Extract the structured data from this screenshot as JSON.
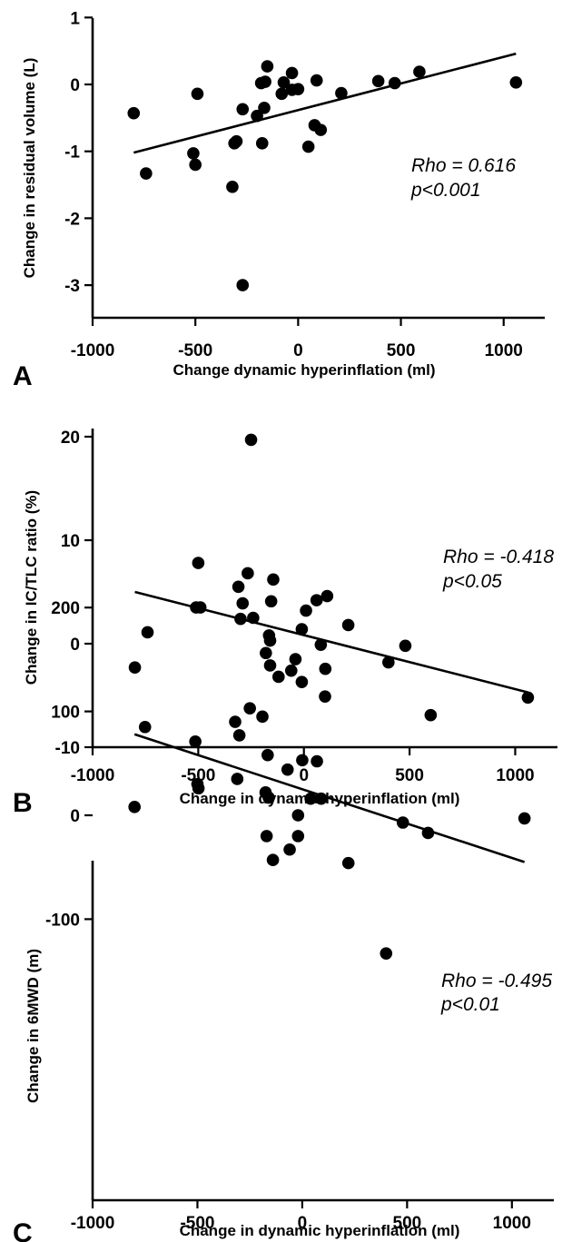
{
  "chart_data": [
    {
      "type": "scatter",
      "panel_label": "A",
      "xlabel": "Change dynamic hyperinflation (ml)",
      "ylabel": "Change in residual volume (L)",
      "xlim": [
        -1000,
        1200
      ],
      "ylim": [
        -3.5,
        1
      ],
      "xticks": [
        "-1000",
        "-500",
        "0",
        "500",
        "1000"
      ],
      "yticks": [
        "1",
        "0",
        "-1",
        "-2",
        "-3"
      ],
      "annotation": {
        "rho": "Rho = 0.616",
        "p": "p<0.001"
      },
      "fit": {
        "x": [
          -800,
          1060
        ],
        "y": [
          -1.02,
          0.46
        ]
      },
      "points": [
        {
          "x": -800,
          "y": -0.43
        },
        {
          "x": -740,
          "y": -1.33
        },
        {
          "x": -510,
          "y": -1.03
        },
        {
          "x": -500,
          "y": -1.2
        },
        {
          "x": -490,
          "y": -0.14
        },
        {
          "x": -320,
          "y": -1.53
        },
        {
          "x": -310,
          "y": -0.88
        },
        {
          "x": -300,
          "y": -0.85
        },
        {
          "x": -270,
          "y": -0.37
        },
        {
          "x": -270,
          "y": -3.0
        },
        {
          "x": -200,
          "y": -0.47
        },
        {
          "x": -180,
          "y": 0.02
        },
        {
          "x": -175,
          "y": -0.88
        },
        {
          "x": -165,
          "y": -0.35
        },
        {
          "x": -160,
          "y": 0.04
        },
        {
          "x": -150,
          "y": 0.27
        },
        {
          "x": -80,
          "y": -0.14
        },
        {
          "x": -70,
          "y": 0.03
        },
        {
          "x": -30,
          "y": -0.08
        },
        {
          "x": -30,
          "y": 0.17
        },
        {
          "x": 0,
          "y": -0.07
        },
        {
          "x": 50,
          "y": -0.93
        },
        {
          "x": 80,
          "y": -0.61
        },
        {
          "x": 90,
          "y": 0.06
        },
        {
          "x": 110,
          "y": -0.68
        },
        {
          "x": 210,
          "y": -0.13
        },
        {
          "x": 390,
          "y": 0.05
        },
        {
          "x": 470,
          "y": 0.02
        },
        {
          "x": 590,
          "y": 0.19
        },
        {
          "x": 1060,
          "y": 0.03
        }
      ]
    },
    {
      "type": "scatter",
      "panel_label": "B",
      "xlabel": "Change in dynamic hyperinflation (ml)",
      "ylabel": "Change in IC/TLC ratio (%)",
      "xlim": [
        -1000,
        1200
      ],
      "ylim": [
        -10,
        21
      ],
      "xticks": [
        "-1000",
        "-500",
        "0",
        "500",
        "1000"
      ],
      "yticks": [
        "20",
        "10",
        "0",
        "-10"
      ],
      "annotation": {
        "rho": "Rho = -0.418",
        "p": "p<0.05"
      },
      "fit": {
        "x": [
          -800,
          1060
        ],
        "y": [
          5.0,
          -4.7
        ]
      },
      "points": [
        {
          "x": -800,
          "y": -2.3
        },
        {
          "x": -740,
          "y": 1.1
        },
        {
          "x": -510,
          "y": 3.5
        },
        {
          "x": -500,
          "y": 7.8
        },
        {
          "x": -490,
          "y": 3.5
        },
        {
          "x": -310,
          "y": 5.5
        },
        {
          "x": -300,
          "y": 2.4
        },
        {
          "x": -290,
          "y": 3.9
        },
        {
          "x": -250,
          "y": 19.7
        },
        {
          "x": -240,
          "y": 2.5
        },
        {
          "x": -180,
          "y": -0.9
        },
        {
          "x": -165,
          "y": 0.8
        },
        {
          "x": -160,
          "y": 0.3
        },
        {
          "x": -160,
          "y": -2.1
        },
        {
          "x": -155,
          "y": 4.1
        },
        {
          "x": -145,
          "y": 6.2
        },
        {
          "x": -120,
          "y": -3.2
        },
        {
          "x": -60,
          "y": -2.6
        },
        {
          "x": -40,
          "y": -1.5
        },
        {
          "x": -10,
          "y": 1.4
        },
        {
          "x": -10,
          "y": -3.7
        },
        {
          "x": 10,
          "y": 3.2
        },
        {
          "x": 60,
          "y": 4.2
        },
        {
          "x": 80,
          "y": -0.1
        },
        {
          "x": 100,
          "y": -5.1
        },
        {
          "x": 110,
          "y": 4.6
        },
        {
          "x": 210,
          "y": 1.8
        },
        {
          "x": 400,
          "y": -1.8
        },
        {
          "x": 480,
          "y": -0.2
        },
        {
          "x": 600,
          "y": -6.9
        },
        {
          "x": 1060,
          "y": -5.2
        }
      ]
    },
    {
      "type": "scatter",
      "panel_label": "C",
      "xlabel": "Change in dynamic hyperinflation (ml)",
      "ylabel": "Change in 6MWD (m)",
      "xlim": [
        -1000,
        1200
      ],
      "ylim": [
        -150,
        250
      ],
      "xticks": [
        "-1000",
        "-500",
        "0",
        "500",
        "1000"
      ],
      "yticks": [
        "200",
        "100",
        "0",
        "-100"
      ],
      "annotation": {
        "rho": "Rho = -0.495",
        "p": "p<0.01"
      },
      "fit": {
        "x": [
          -800,
          1060
        ],
        "y": [
          78,
          -45
        ]
      },
      "points": [
        {
          "x": -800,
          "y": 8
        },
        {
          "x": -750,
          "y": 85
        },
        {
          "x": -510,
          "y": 71
        },
        {
          "x": -500,
          "y": 30
        },
        {
          "x": -495,
          "y": 26
        },
        {
          "x": -320,
          "y": 90
        },
        {
          "x": -310,
          "y": 35
        },
        {
          "x": -300,
          "y": 77
        },
        {
          "x": -260,
          "y": 233
        },
        {
          "x": -250,
          "y": 103
        },
        {
          "x": -190,
          "y": 95
        },
        {
          "x": -175,
          "y": 22
        },
        {
          "x": -170,
          "y": -20
        },
        {
          "x": -165,
          "y": 58
        },
        {
          "x": -160,
          "y": 17
        },
        {
          "x": -140,
          "y": -43
        },
        {
          "x": -70,
          "y": 44
        },
        {
          "x": -60,
          "y": -33
        },
        {
          "x": -20,
          "y": -20
        },
        {
          "x": -20,
          "y": 0
        },
        {
          "x": 0,
          "y": 53
        },
        {
          "x": 40,
          "y": 16
        },
        {
          "x": 70,
          "y": 52
        },
        {
          "x": 90,
          "y": 16
        },
        {
          "x": 110,
          "y": 141
        },
        {
          "x": 220,
          "y": -46
        },
        {
          "x": 400,
          "y": -133
        },
        {
          "x": 480,
          "y": -7
        },
        {
          "x": 600,
          "y": -17
        },
        {
          "x": 1060,
          "y": -3
        }
      ]
    }
  ]
}
